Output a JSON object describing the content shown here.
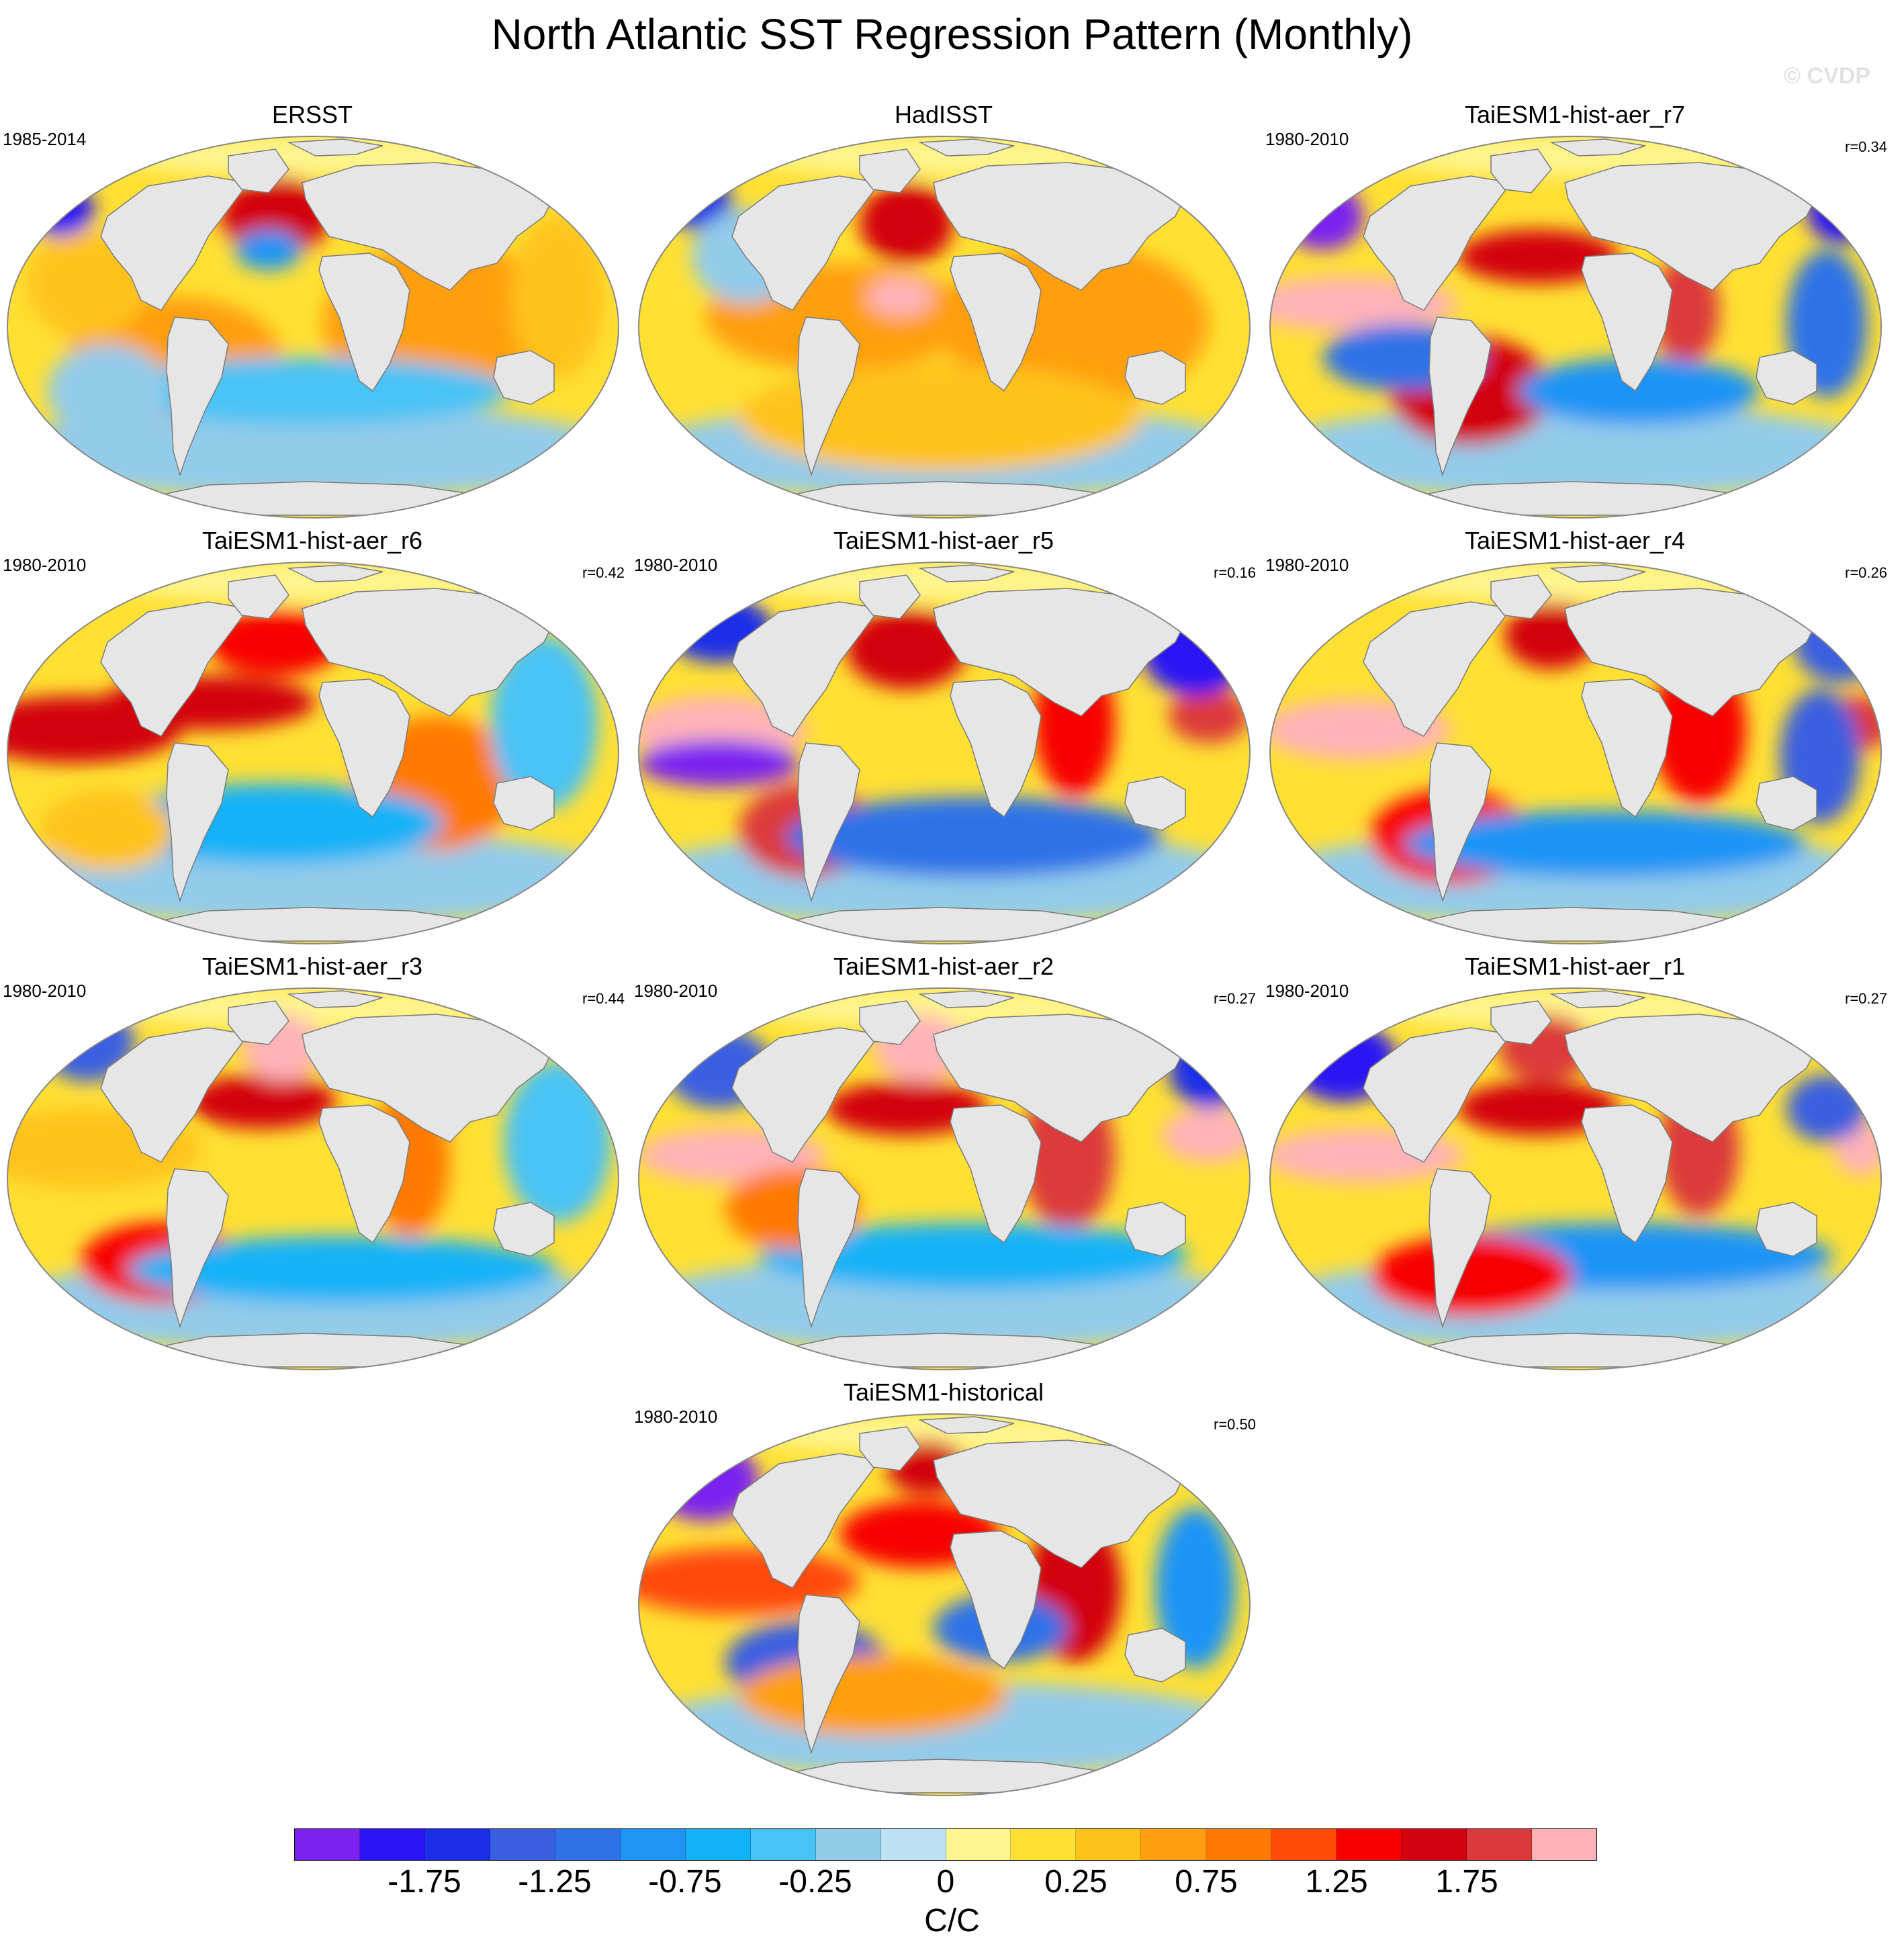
{
  "title": "North Atlantic SST Regression Pattern (Monthly)",
  "watermark": "© CVDP",
  "panels": [
    {
      "name": "ERSST",
      "period": "1985-2014",
      "r": ""
    },
    {
      "name": "HadISST",
      "period": "",
      "r": ""
    },
    {
      "name": "TaiESM1-hist-aer_r7",
      "period": "1980-2010",
      "r": "r=0.34"
    },
    {
      "name": "TaiESM1-hist-aer_r6",
      "period": "1980-2010",
      "r": "r=0.42"
    },
    {
      "name": "TaiESM1-hist-aer_r5",
      "period": "1980-2010",
      "r": "r=0.16"
    },
    {
      "name": "TaiESM1-hist-aer_r4",
      "period": "1980-2010",
      "r": "r=0.26"
    },
    {
      "name": "TaiESM1-hist-aer_r3",
      "period": "1980-2010",
      "r": "r=0.44"
    },
    {
      "name": "TaiESM1-hist-aer_r2",
      "period": "1980-2010",
      "r": "r=0.27"
    },
    {
      "name": "TaiESM1-hist-aer_r1",
      "period": "1980-2010",
      "r": "r=0.27"
    },
    {
      "name": "TaiESM1-historical",
      "period": "1980-2010",
      "r": "r=0.50"
    }
  ],
  "colorbar": {
    "unit": "C/C",
    "tick_labels": [
      "-1.75",
      "-1.25",
      "-0.75",
      "-0.25",
      "0",
      "0.25",
      "0.75",
      "1.25",
      "1.75"
    ],
    "tick_values": [
      -1.75,
      -1.25,
      -0.75,
      -0.25,
      0,
      0.25,
      0.75,
      1.25,
      1.75
    ],
    "levels": [
      -2,
      -1.75,
      -1.5,
      -1.25,
      -1,
      -0.75,
      -0.5,
      -0.25,
      -0.1,
      0,
      0.1,
      0.25,
      0.5,
      0.75,
      1,
      1.25,
      1.5,
      1.75,
      2
    ],
    "colors": [
      "#7b22f0",
      "#2b14f5",
      "#1a2ee8",
      "#3a5ee0",
      "#2f72e8",
      "#1f94f5",
      "#12b2f7",
      "#49c2f5",
      "#93cbea",
      "#bde0f3",
      "#fff58f",
      "#ffe033",
      "#ffc21a",
      "#ff9f0f",
      "#ff7a05",
      "#ff4a0a",
      "#f80000",
      "#d30010",
      "#dc3a3a",
      "#ffb3b8"
    ]
  },
  "land_color": "#e6e6e6",
  "coastline_color": "#7a7a7a"
}
